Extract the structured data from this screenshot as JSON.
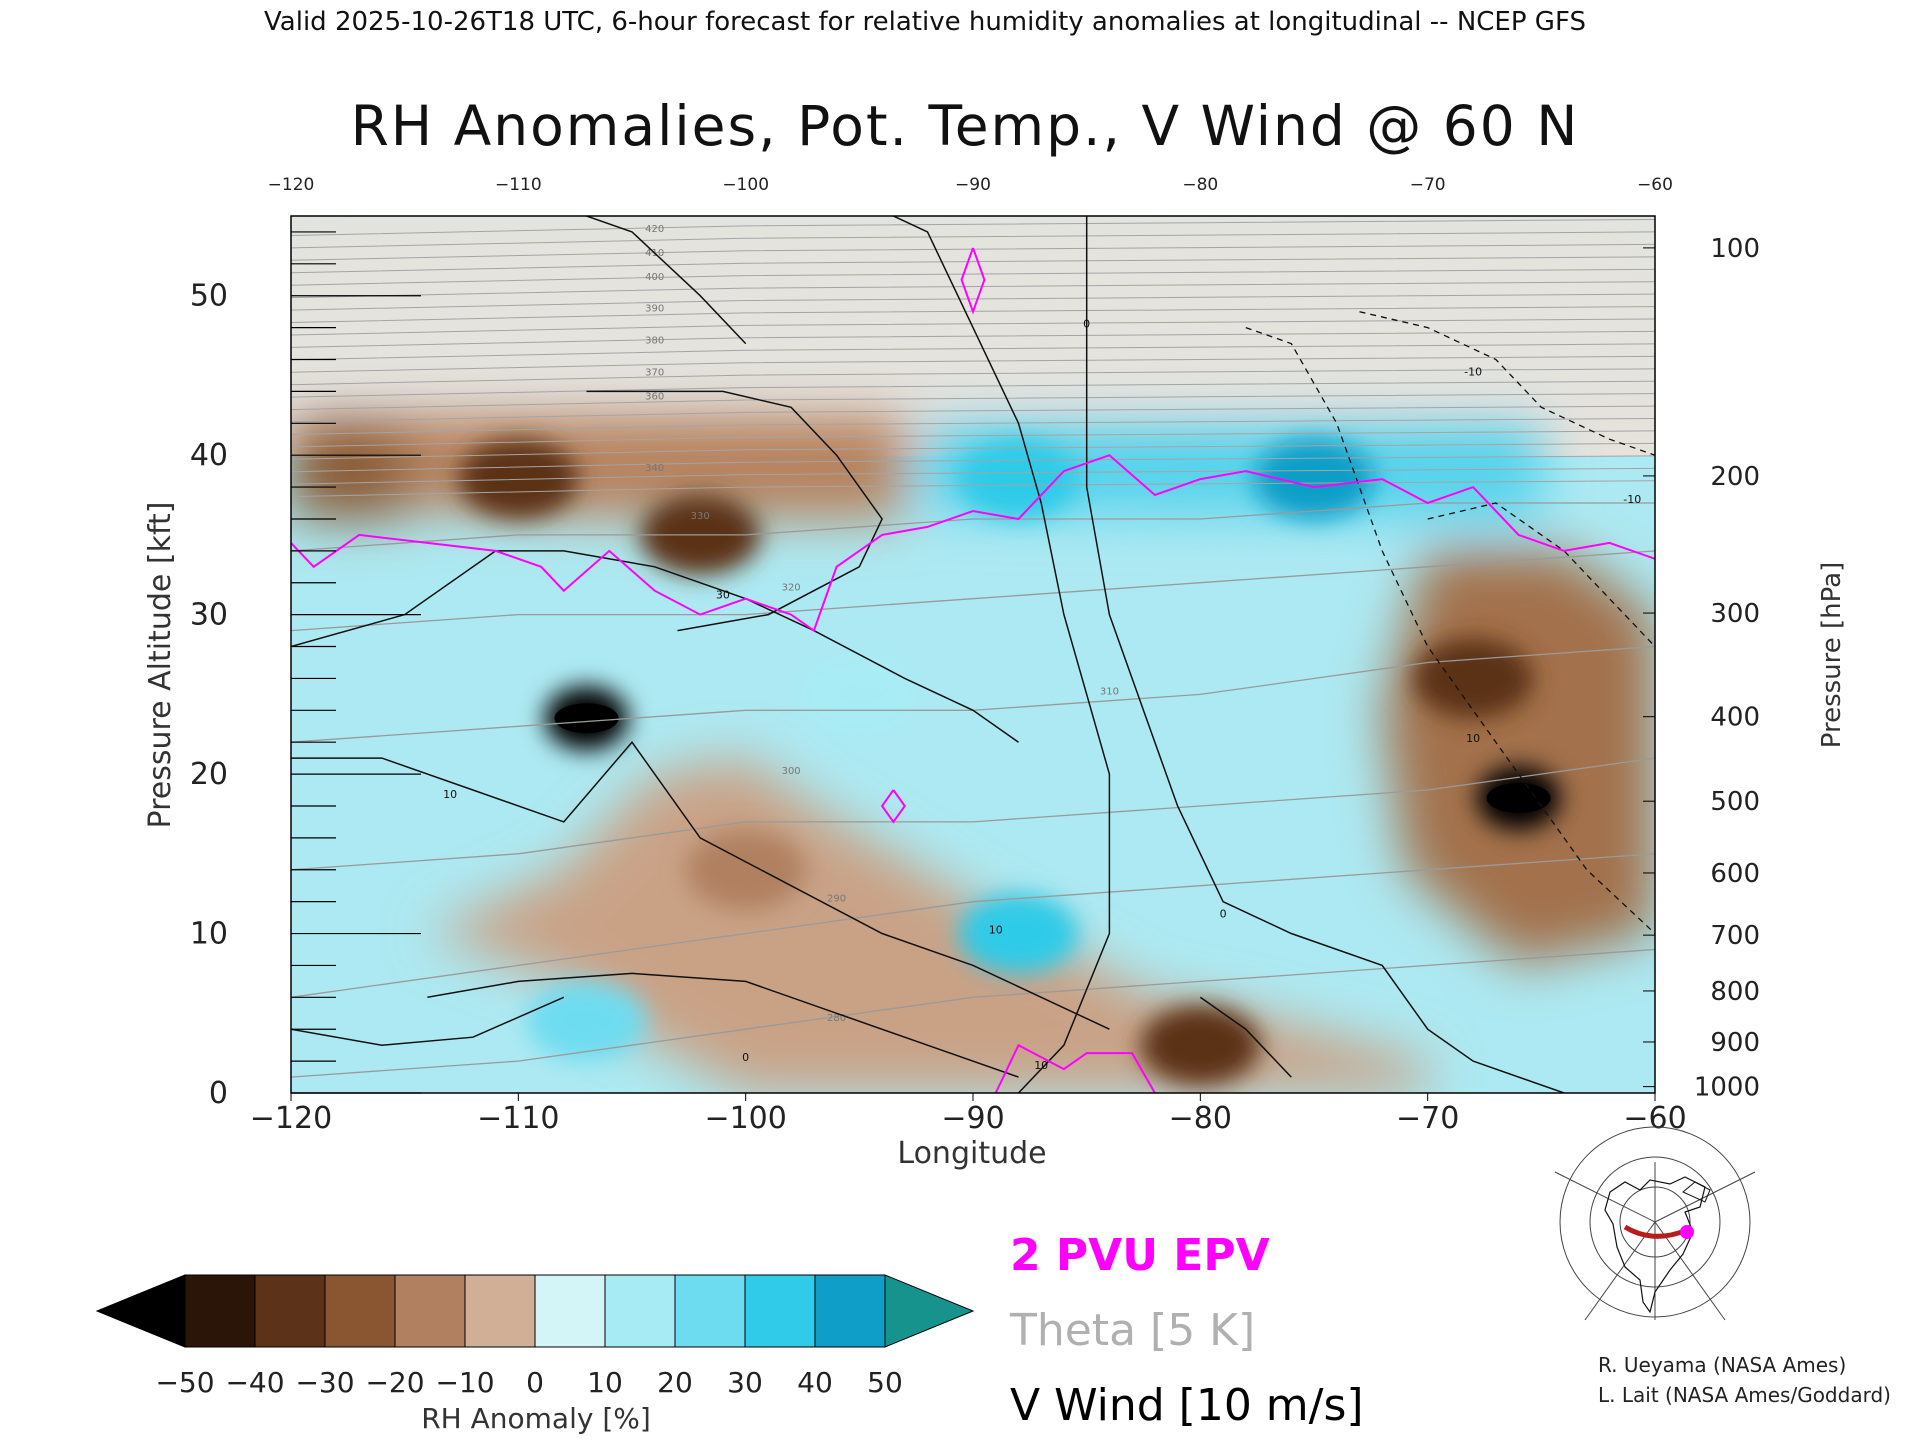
{
  "header": "Valid 2025-10-26T18 UTC, 6-hour forecast for relative humidity anomalies at longitudinal -- NCEP GFS",
  "chart_data": {
    "type": "heatmap",
    "title": "RH Anomalies, Pot. Temp., V Wind @ 60 N",
    "xlabel": "Longitude",
    "ylabel": "Pressure Altitude [kft]",
    "y2label": "Pressure [hPa]",
    "xlim": [
      -120,
      -60
    ],
    "ylim": [
      0,
      55
    ],
    "x_ticks": [
      "-120",
      "-110",
      "-100",
      "-90",
      "-80",
      "-70",
      "-60"
    ],
    "top_ticks": [
      "-120",
      "-110",
      "-100",
      "-90",
      "-80",
      "-70",
      "-60"
    ],
    "y_ticks": [
      "0",
      "10",
      "20",
      "30",
      "40",
      "50"
    ],
    "pressure_ticks": [
      {
        "label": "100",
        "kft": 53
      },
      {
        "label": "200",
        "kft": 38.7
      },
      {
        "label": "300",
        "kft": 30.1
      },
      {
        "label": "400",
        "kft": 23.6
      },
      {
        "label": "500",
        "kft": 18.3
      },
      {
        "label": "600",
        "kft": 13.8
      },
      {
        "label": "700",
        "kft": 9.9
      },
      {
        "label": "800",
        "kft": 6.4
      },
      {
        "label": "900",
        "kft": 3.2
      },
      {
        "label": "1000",
        "kft": 0.4
      }
    ],
    "colorbar": {
      "label": "RH Anomaly [%]",
      "ticks": [
        "-50",
        "-40",
        "-30",
        "-20",
        "-10",
        "0",
        "10",
        "20",
        "30",
        "40",
        "50"
      ],
      "colors": [
        "#2b1508",
        "#5c3218",
        "#8a5632",
        "#b08060",
        "#d1ae96",
        "#ede0d6",
        "#d4f5f8",
        "#a7ecf5",
        "#6edcf0",
        "#2fcbe8",
        "#0e9ec7",
        "#0b6f8e"
      ],
      "under_color": "#000000",
      "over_color": "#16938c"
    },
    "anomaly_features": [
      {
        "lon": -110,
        "kft": 38.5,
        "value": -35
      },
      {
        "lon": -102,
        "kft": 35,
        "value": -40
      },
      {
        "lon": -107,
        "kft": 23.5,
        "value": -52
      },
      {
        "lon": -100,
        "kft": 14,
        "value": -20
      },
      {
        "lon": -66,
        "kft": 18.5,
        "value": -52
      },
      {
        "lon": -68,
        "kft": 26,
        "value": -35
      },
      {
        "lon": -80,
        "kft": 3,
        "value": -38
      },
      {
        "lon": -75,
        "kft": 38.5,
        "value": 45
      },
      {
        "lon": -88,
        "kft": 38.5,
        "value": 38
      },
      {
        "lon": -88,
        "kft": 10,
        "value": 35
      },
      {
        "lon": -107,
        "kft": 4.5,
        "value": 25
      },
      {
        "lon": -95,
        "kft": 25,
        "value": 15
      }
    ],
    "legend": [
      {
        "label": "2 PVU EPV",
        "color": "#ff00ff"
      },
      {
        "label": "Theta [5 K]",
        "color": "#b0b0b0"
      },
      {
        "label": "V Wind [10 m/s]",
        "color": "#000000"
      }
    ],
    "theta_labels": [
      "280",
      "290",
      "300",
      "310",
      "320",
      "330",
      "340",
      "360",
      "370",
      "380",
      "390",
      "400",
      "410",
      "420"
    ],
    "wind_labels": [
      "10",
      "10",
      "0",
      "30",
      "0",
      "10",
      "-10",
      "0",
      "10",
      "-10"
    ]
  },
  "credits": [
    "R. Ueyama (NASA Ames)",
    "L. Lait (NASA Ames/Goddard)"
  ]
}
